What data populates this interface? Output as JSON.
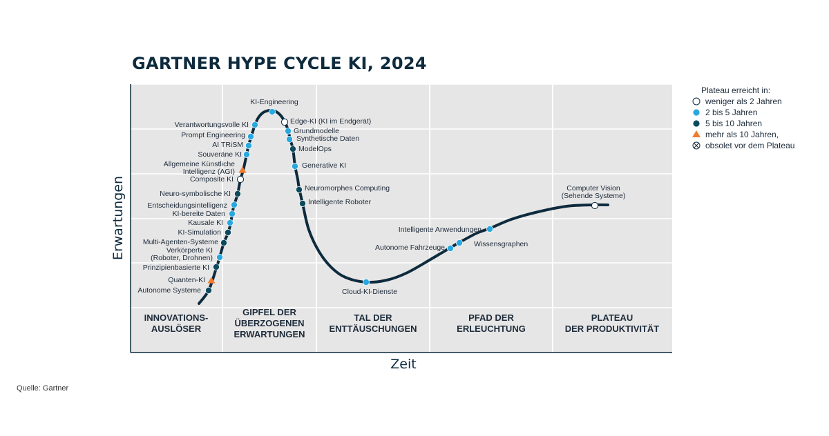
{
  "title": "GARTNER HYPE CYCLE KI, 2024",
  "source": "Quelle: Gartner",
  "colors": {
    "background_panel": "#e7e6e6",
    "curve": "#0e2b3e",
    "lt2": "#ffffff",
    "y2to5": "#29a8e0",
    "y5to10": "#0e4a5e",
    "gt10": "#f07c2e"
  },
  "chart_data": {
    "type": "hype-cycle",
    "xlabel": "Zeit",
    "ylabel": "Erwartungen",
    "phases": [
      {
        "lines": [
          "INNOVATIONS-",
          "AUSLÖSER"
        ]
      },
      {
        "lines": [
          "GIPFEL DER",
          "ÜBERZOGENEN",
          "ERWARTUNGEN"
        ]
      },
      {
        "lines": [
          "TAL DER",
          "ENTTÄUSCHUNGEN"
        ]
      },
      {
        "lines": [
          "PFAD DER",
          "ERLEUCHTUNG"
        ]
      },
      {
        "lines": [
          "PLATEAU",
          "DER PRODUKTIVITÄT"
        ]
      }
    ],
    "legend": {
      "title": "Plateau erreicht in:",
      "items": [
        {
          "key": "lt2",
          "label": "weniger als 2 Jahren",
          "marker": "circle-open"
        },
        {
          "key": "y2to5",
          "label": "2 bis 5 Jahren",
          "marker": "circle"
        },
        {
          "key": "y5to10",
          "label": "5 bis 10 Jahren",
          "marker": "circle"
        },
        {
          "key": "gt10",
          "label": "mehr als 10 Jahren,",
          "marker": "triangle"
        },
        {
          "key": "obsolete",
          "label": "obsolet vor dem Plateau",
          "marker": "crossed-circle"
        }
      ]
    },
    "technologies": [
      {
        "lines": [
          "Autonome Systeme"
        ],
        "cat": "y5to10"
      },
      {
        "lines": [
          "Quanten-KI"
        ],
        "cat": "gt10"
      },
      {
        "lines": [
          "Prinzipienbasierte KI"
        ],
        "cat": "y5to10"
      },
      {
        "lines": [
          "Verkörperte KI",
          "(Roboter, Drohnen)"
        ],
        "cat": "y2to5"
      },
      {
        "lines": [
          "Multi-Agenten-Systeme"
        ],
        "cat": "y5to10"
      },
      {
        "lines": [
          "KI-Simulation"
        ],
        "cat": "y5to10"
      },
      {
        "lines": [
          "Kausale KI"
        ],
        "cat": "y2to5"
      },
      {
        "lines": [
          "KI-bereite Daten"
        ],
        "cat": "y2to5"
      },
      {
        "lines": [
          "Entscheidungsintelligenz"
        ],
        "cat": "y2to5"
      },
      {
        "lines": [
          "Neuro-symbolische KI"
        ],
        "cat": "y5to10"
      },
      {
        "lines": [
          "Composite KI"
        ],
        "cat": "lt2"
      },
      {
        "lines": [
          "Allgemeine Künstliche",
          "Intelligenz (AGI)"
        ],
        "cat": "gt10"
      },
      {
        "lines": [
          "Souveräne KI"
        ],
        "cat": "y2to5"
      },
      {
        "lines": [
          "AI TRiSM"
        ],
        "cat": "y2to5"
      },
      {
        "lines": [
          "Prompt Engineering"
        ],
        "cat": "y2to5"
      },
      {
        "lines": [
          "Verantwortungsvolle KI"
        ],
        "cat": "y2to5"
      },
      {
        "lines": [
          "KI-Engineering"
        ],
        "cat": "y2to5"
      },
      {
        "lines": [
          "Edge-KI (KI im Endgerät)"
        ],
        "cat": "lt2"
      },
      {
        "lines": [
          "Grundmodelle"
        ],
        "cat": "y2to5"
      },
      {
        "lines": [
          "Synthetische Daten"
        ],
        "cat": "y2to5"
      },
      {
        "lines": [
          "ModelOps"
        ],
        "cat": "y5to10"
      },
      {
        "lines": [
          "Generative KI"
        ],
        "cat": "y2to5"
      },
      {
        "lines": [
          "Neuromorphes Computing"
        ],
        "cat": "y5to10"
      },
      {
        "lines": [
          "Intelligente Roboter"
        ],
        "cat": "y5to10"
      },
      {
        "lines": [
          "Cloud-KI-Dienste"
        ],
        "cat": "y2to5"
      },
      {
        "lines": [
          "Autonome Fahrzeuge"
        ],
        "cat": "y2to5"
      },
      {
        "lines": [
          "Wissensgraphen"
        ],
        "cat": "y2to5"
      },
      {
        "lines": [
          "Intelligente Anwendungen"
        ],
        "cat": "y2to5"
      },
      {
        "lines": [
          "Computer Vision",
          "(Sehende Systeme)"
        ],
        "cat": "lt2"
      }
    ]
  }
}
